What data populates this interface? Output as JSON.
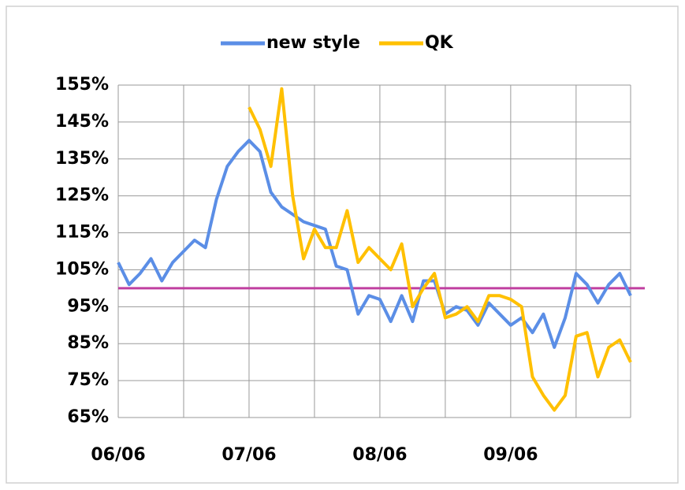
{
  "chart_data": {
    "type": "line",
    "categories": [
      "06/06",
      null,
      null,
      null,
      null,
      null,
      null,
      null,
      null,
      null,
      null,
      null,
      "07/06",
      null,
      null,
      null,
      null,
      null,
      null,
      null,
      null,
      null,
      null,
      null,
      "08/06",
      null,
      null,
      null,
      null,
      null,
      null,
      null,
      null,
      null,
      null,
      null,
      "09/06",
      null,
      null,
      null,
      null,
      null,
      null,
      null,
      null,
      null,
      null,
      null
    ],
    "series": [
      {
        "name": "new style",
        "color": "#5b8ee6",
        "values": [
          107,
          101,
          104,
          108,
          102,
          107,
          110,
          113,
          111,
          124,
          133,
          137,
          140,
          137,
          126,
          122,
          120,
          118,
          117,
          116,
          106,
          105,
          93,
          98,
          97,
          91,
          98,
          91,
          102,
          102,
          93,
          95,
          94,
          90,
          96,
          93,
          90,
          92,
          88,
          93,
          84,
          92,
          104,
          101,
          96,
          101,
          104,
          98
        ]
      },
      {
        "name": "QK",
        "color": "#ffc000",
        "values": [
          null,
          null,
          null,
          null,
          null,
          null,
          null,
          null,
          null,
          null,
          null,
          null,
          149,
          143,
          133,
          154,
          125,
          108,
          116,
          111,
          111,
          121,
          107,
          111,
          108,
          105,
          112,
          95,
          100,
          104,
          92,
          93,
          95,
          91,
          98,
          98,
          97,
          95,
          76,
          71,
          67,
          71,
          87,
          88,
          76,
          84,
          86,
          80
        ]
      }
    ],
    "reference_line": {
      "value": 100,
      "color": "#c03fa0"
    },
    "ylim": [
      65,
      155
    ],
    "yticks": [
      {
        "value": 65,
        "label": "65%"
      },
      {
        "value": 75,
        "label": "75%"
      },
      {
        "value": 85,
        "label": "85%"
      },
      {
        "value": 95,
        "label": "95%"
      },
      {
        "value": 105,
        "label": "105%"
      },
      {
        "value": 115,
        "label": "115%"
      },
      {
        "value": 125,
        "label": "125%"
      },
      {
        "value": 135,
        "label": "135%"
      },
      {
        "value": 145,
        "label": "145%"
      },
      {
        "value": 155,
        "label": "155%"
      }
    ],
    "grid": true,
    "legend": "top"
  }
}
